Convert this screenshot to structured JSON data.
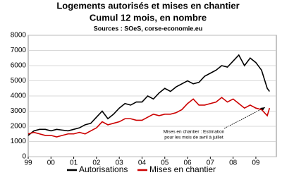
{
  "chart_data": {
    "type": "line",
    "title": "Logements autorisés et mises en chantier",
    "subtitle": "Cumul 12 mois, en nombre",
    "source": "Sources : SOeS, corse-economie.eu",
    "annotation": [
      "Mises en chantier : Estimation",
      "pour les mois de avril à juillet"
    ],
    "x": [
      1999,
      1999.25,
      1999.5,
      1999.75,
      2000,
      2000.25,
      2000.5,
      2000.75,
      2001,
      2001.25,
      2001.5,
      2001.75,
      2002,
      2002.25,
      2002.5,
      2002.75,
      2003,
      2003.25,
      2003.5,
      2003.75,
      2004,
      2004.25,
      2004.5,
      2004.75,
      2005,
      2005.25,
      2005.5,
      2005.75,
      2006,
      2006.25,
      2006.5,
      2006.75,
      2007,
      2007.25,
      2007.5,
      2007.75,
      2008,
      2008.25,
      2008.5,
      2008.75,
      2009,
      2009.25,
      2009.5,
      2009.6
    ],
    "series": [
      {
        "name": "Autorisations",
        "color": "#000000",
        "values": [
          1400,
          1700,
          1800,
          1800,
          1700,
          1800,
          1750,
          1700,
          1800,
          1900,
          2100,
          2200,
          2600,
          3000,
          2500,
          2800,
          3200,
          3500,
          3400,
          3600,
          3600,
          4000,
          3800,
          4200,
          4500,
          4300,
          4600,
          4800,
          5000,
          4800,
          4900,
          5300,
          5500,
          5700,
          6000,
          5900,
          6300,
          6700,
          6000,
          6500,
          6200,
          5700,
          4500,
          4300
        ]
      },
      {
        "name": "Mises en chantier",
        "color": "#cc0000",
        "values": [
          1500,
          1600,
          1500,
          1400,
          1400,
          1300,
          1400,
          1500,
          1500,
          1600,
          1500,
          1700,
          1900,
          2300,
          2100,
          2200,
          2300,
          2500,
          2500,
          2400,
          2400,
          2600,
          2800,
          2700,
          2800,
          2800,
          2900,
          3100,
          3500,
          3800,
          3400,
          3400,
          3500,
          3600,
          3900,
          3600,
          3800,
          3500,
          3200,
          3400,
          3200,
          3100,
          2700,
          3200
        ]
      }
    ],
    "xlim": [
      1999,
      2009.9
    ],
    "xticks": [
      {
        "value": 1999,
        "label": "99"
      },
      {
        "value": 2000,
        "label": "00"
      },
      {
        "value": 2001,
        "label": "01"
      },
      {
        "value": 2002,
        "label": "02"
      },
      {
        "value": 2003,
        "label": "03"
      },
      {
        "value": 2004,
        "label": "04"
      },
      {
        "value": 2005,
        "label": "05"
      },
      {
        "value": 2006,
        "label": "06"
      },
      {
        "value": 2007,
        "label": "07"
      },
      {
        "value": 2008,
        "label": "08"
      },
      {
        "value": 2009,
        "label": "09"
      }
    ],
    "ylim": [
      0,
      8000
    ],
    "yticks": [
      0,
      1000,
      2000,
      3000,
      4000,
      5000,
      6000,
      7000,
      8000
    ],
    "grid": true
  }
}
